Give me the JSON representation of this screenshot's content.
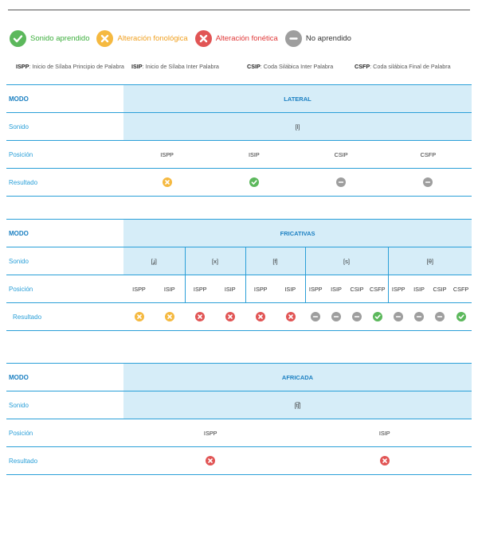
{
  "colors": {
    "green": "#5cb85c",
    "orange": "#f5b940",
    "red": "#e15555",
    "grey": "#9e9e9e",
    "blue": "#2a9fd8",
    "header_bg": "#d6edf8"
  },
  "legend": [
    {
      "icon": "check-icon",
      "kind": "ok",
      "label": "Sonido aprendido",
      "color": "#3cae3c"
    },
    {
      "icon": "cross-icon",
      "kind": "fono",
      "label": "Alteración fonológica",
      "color": "#f0a020"
    },
    {
      "icon": "cross-icon",
      "kind": "fone",
      "label": "Alteración fonética",
      "color": "#e03838"
    },
    {
      "icon": "minus-icon",
      "kind": "no",
      "label": "No aprendido",
      "color": "#333333"
    }
  ],
  "abbreviations": [
    {
      "code": "ISPP",
      "text": ": Inicio de Sílaba Principio de Palabra"
    },
    {
      "code": "ISIP",
      "text": ": Inicio de Sílaba Inter Palabra"
    },
    {
      "code": "CSIP",
      "text": ": Coda Silábica Inter Palabra"
    },
    {
      "code": "CSFP",
      "text": ": Coda silábica Final de Palabra"
    }
  ],
  "row_labels": {
    "modo": "MODO",
    "sonido": "Sonido",
    "posicion": "Posición",
    "resultado": "Resultado"
  },
  "lateral": {
    "modo": "LATERAL",
    "sonido": "[l]",
    "posiciones": [
      "ISPP",
      "ISIP",
      "CSIP",
      "CSFP"
    ],
    "resultados": [
      "fono",
      "ok",
      "no",
      "no"
    ]
  },
  "fricativas": {
    "modo": "FRICATIVAS",
    "sonidos": [
      "[ʝ]",
      "[x]",
      "[f]",
      "[s]",
      "[θ]"
    ],
    "posiciones": [
      "ISPP",
      "ISIP",
      "ISPP",
      "ISIP",
      "ISPP",
      "ISIP",
      "ISPP",
      "ISIP",
      "CSIP",
      "CSFP",
      "ISPP",
      "ISIP",
      "CSIP",
      "CSFP"
    ],
    "resultados": [
      "fono",
      "fono",
      "fone",
      "fone",
      "fone",
      "fone",
      "no",
      "no",
      "no",
      "ok",
      "no",
      "no",
      "no",
      "ok"
    ]
  },
  "africada": {
    "modo": "AFRICADA",
    "sonido": "[t͡ʃ]",
    "posiciones": [
      "ISPP",
      "ISIP"
    ],
    "resultados": [
      "fone",
      "fone"
    ]
  }
}
